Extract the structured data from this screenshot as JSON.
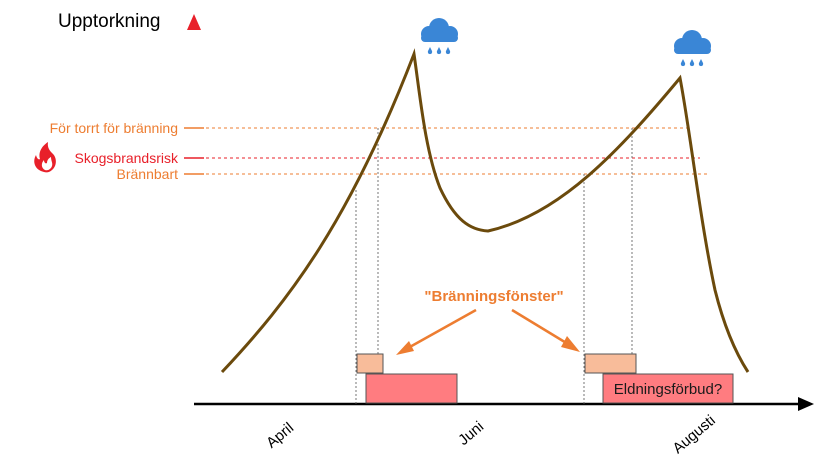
{
  "y_axis_label": "Upptorkning",
  "thresholds": {
    "too_dry": "För torrt för bränning",
    "fire_risk": "Skogsbrandsrisk",
    "burnable": "Brännbart"
  },
  "window_label": "\"Bränningsfönster\"",
  "ban_label": "Eldningsförbud?",
  "months": [
    "April",
    "Juni",
    "Augusti"
  ],
  "colors": {
    "curve": "#6b4a0c",
    "threshold_orange": "#ed7d31",
    "threshold_red": "#e8202a",
    "window_box": "#f8bc9a",
    "ban_box": "#ff7c80",
    "axis_dark": "#000000",
    "rain_cloud": "#3a86d6"
  },
  "icons": [
    "rain-cloud-icon",
    "rain-cloud-icon",
    "fire-icon"
  ]
}
